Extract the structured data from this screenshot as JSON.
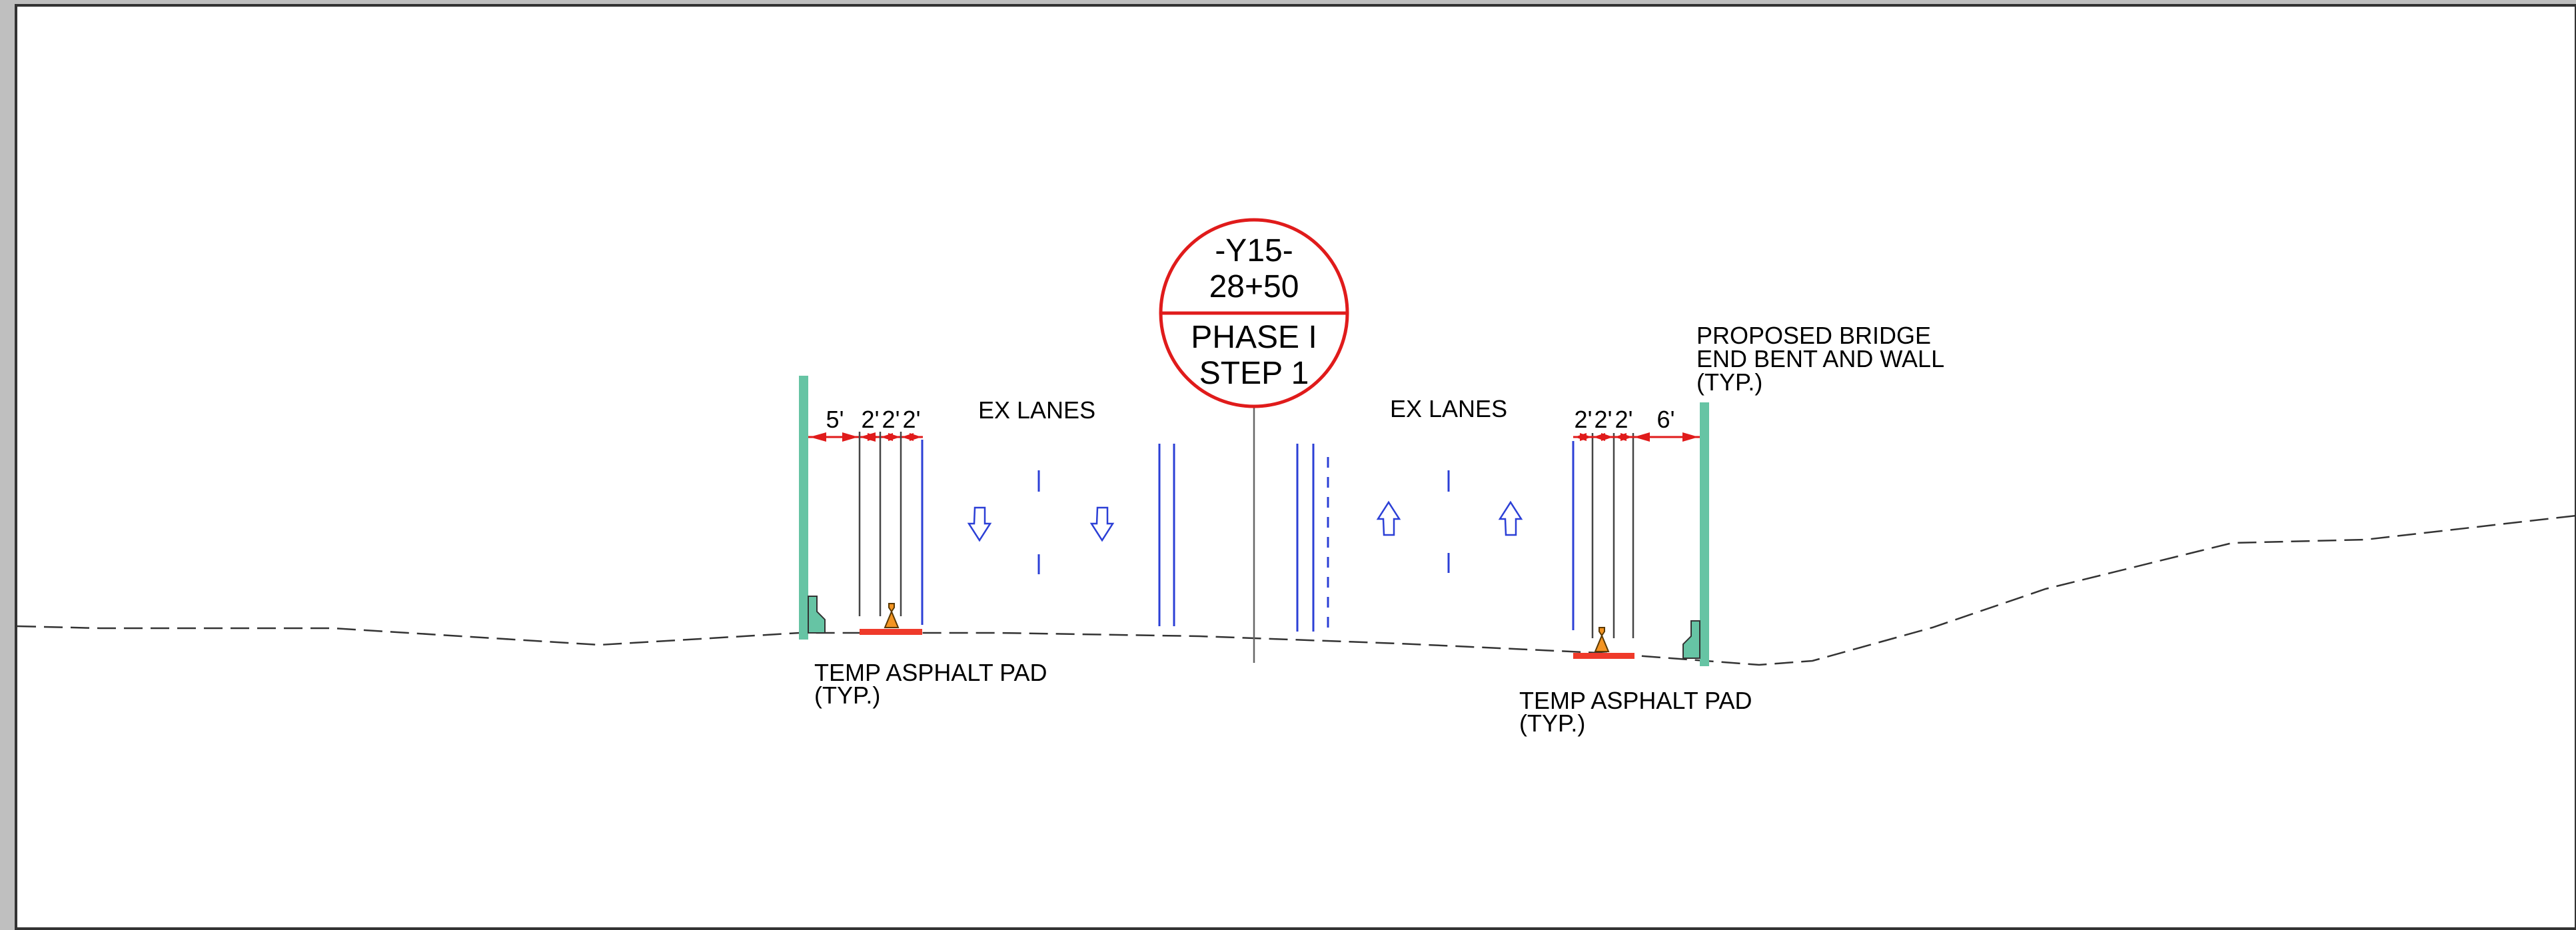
{
  "station_callout": {
    "alignment": "-Y15-",
    "station": "28+50",
    "phase": "PHASE I",
    "step": "STEP 1"
  },
  "labels": {
    "ex_lanes_left": "EX LANES",
    "ex_lanes_right": "EX LANES",
    "proposed_bridge": [
      "PROPOSED BRIDGE",
      "END BENT AND WALL",
      "(TYP.)"
    ],
    "asphalt_pad_left": [
      "TEMP ASPHALT PAD",
      "(TYP.)"
    ],
    "asphalt_pad_right": [
      "TEMP ASPHALT PAD",
      "(TYP.)"
    ]
  },
  "dimensions": {
    "left": [
      "5'",
      "2'",
      "2'",
      "2'"
    ],
    "right": [
      "2'",
      "2'",
      "2'",
      "6'"
    ]
  },
  "traffic": {
    "southbound_arrows": 2,
    "northbound_arrows": 2
  },
  "colors": {
    "callout_red": "#e01b1b",
    "wall_green": "#66c4a4",
    "lane_blue": "#2b3fd6",
    "pad_red": "#ef3a2a",
    "drum_orange": "#f39422",
    "frame_gray": "#bfbfbf",
    "ground_line": "#333333"
  }
}
